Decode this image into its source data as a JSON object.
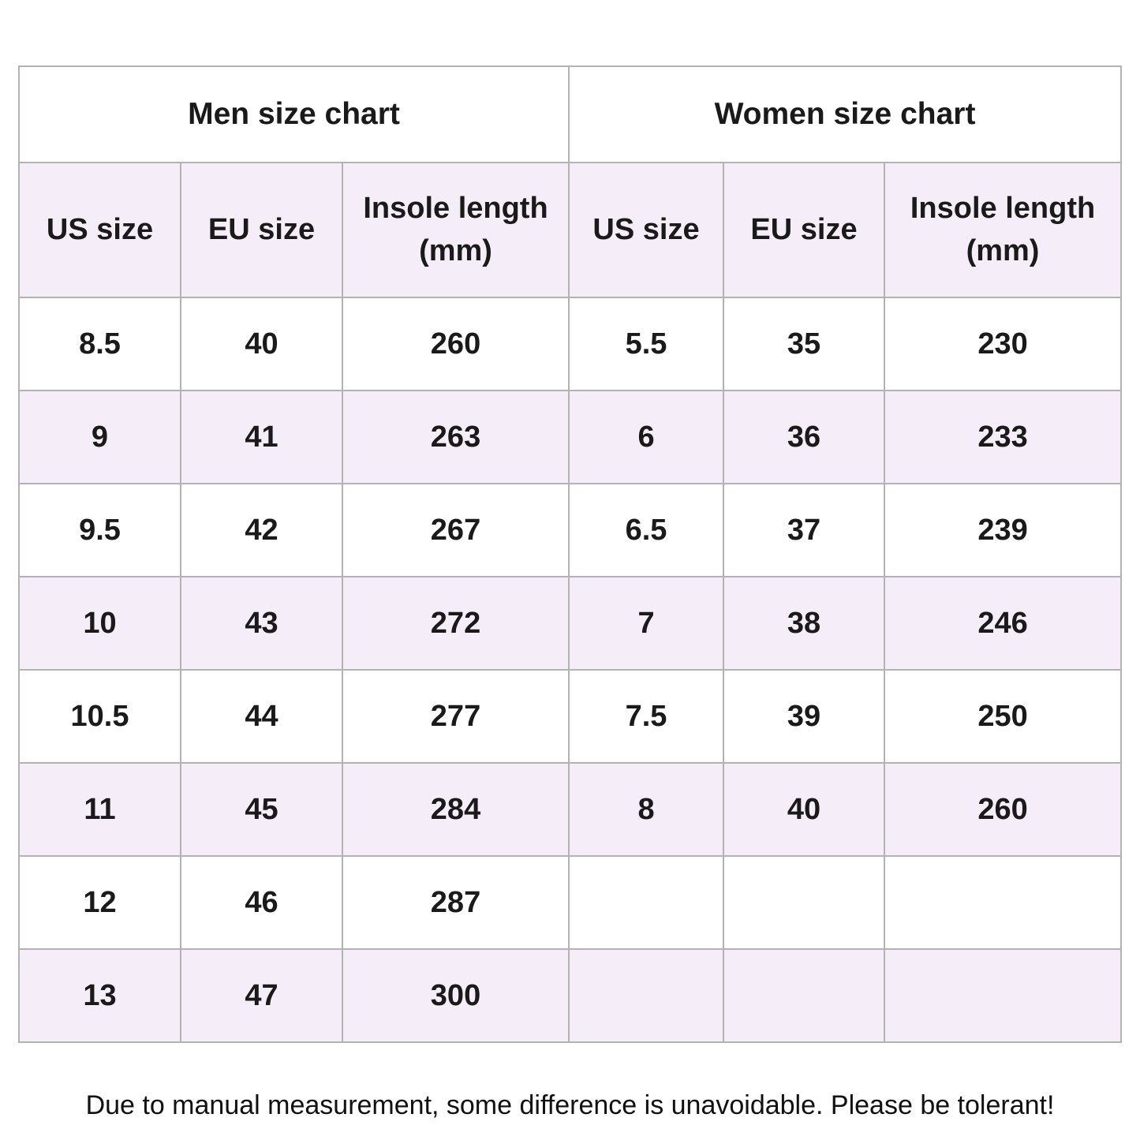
{
  "page": {
    "note": "Due to manual measurement, some difference is unavoidable. Please be tolerant!"
  },
  "display": {
    "insole_line1": "Insole length",
    "insole_line2": "(mm)"
  },
  "colors": {
    "row_alt_background": "#f5eef9",
    "border": "#b3b3b3",
    "text": "#1a1a1a"
  },
  "chart_data": [
    {
      "type": "table",
      "title": "Men size chart",
      "columns": [
        "US size",
        "EU size",
        "Insole length (mm)"
      ],
      "rows": [
        [
          "8.5",
          "40",
          "260"
        ],
        [
          "9",
          "41",
          "263"
        ],
        [
          "9.5",
          "42",
          "267"
        ],
        [
          "10",
          "43",
          "272"
        ],
        [
          "10.5",
          "44",
          "277"
        ],
        [
          "11",
          "45",
          "284"
        ],
        [
          "12",
          "46",
          "287"
        ],
        [
          "13",
          "47",
          "300"
        ]
      ]
    },
    {
      "type": "table",
      "title": "Women size chart",
      "columns": [
        "US size",
        "EU size",
        "Insole length (mm)"
      ],
      "rows": [
        [
          "5.5",
          "35",
          "230"
        ],
        [
          "6",
          "36",
          "233"
        ],
        [
          "6.5",
          "37",
          "239"
        ],
        [
          "7",
          "38",
          "246"
        ],
        [
          "7.5",
          "39",
          "250"
        ],
        [
          "8",
          "40",
          "260"
        ],
        [
          "",
          "",
          ""
        ],
        [
          "",
          "",
          ""
        ]
      ]
    }
  ]
}
